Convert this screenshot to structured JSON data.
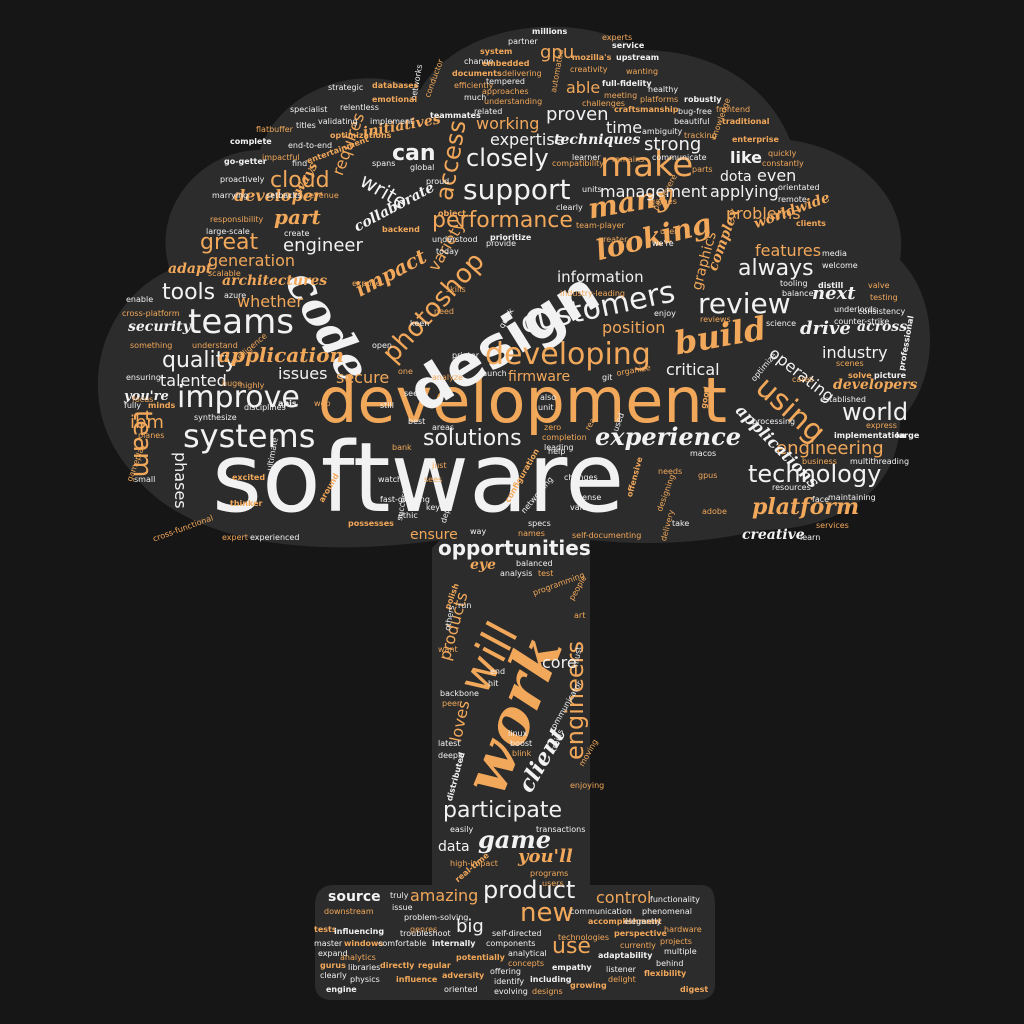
{
  "colors": {
    "background": "#161616",
    "shape": "#2c2c2c",
    "accent": "#f2a85a",
    "light": "#f2f2f2"
  },
  "words": {
    "software": "software",
    "development": "development",
    "design": "design",
    "code": "code",
    "work": "work",
    "will": "will",
    "customers": "customers",
    "developing": "developing",
    "build": "build",
    "teams": "teams",
    "systems": "systems",
    "improve": "improve",
    "experience": "experience",
    "solutions": "solutions",
    "support": "support",
    "make": "make",
    "looking": "looking",
    "many": "many",
    "review": "review",
    "using": "using",
    "world": "world",
    "technology": "technology",
    "platform": "platform",
    "photoshop": "photoshop",
    "performance": "performance",
    "cloud": "cloud",
    "team": "team",
    "great": "great",
    "engineer": "engineer",
    "tools": "tools",
    "quality": "quality",
    "application": "application",
    "opportunities": "opportunities",
    "engineers": "engineers",
    "client": "client",
    "participate": "participate",
    "game": "game",
    "product": "product",
    "new": "new",
    "amazing": "amazing",
    "use": "use",
    "source": "source",
    "control": "control",
    "big": "big",
    "data": "data",
    "you_ll": "you'll",
    "closely": "closely",
    "access": "access",
    "can": "can",
    "write": "write",
    "impact": "impact",
    "always": "always",
    "next": "next",
    "drive": "drive",
    "engineering": "engineering",
    "industry": "industry",
    "applications": "applications",
    "secure": "secure",
    "firmware": "firmware",
    "critical": "critical",
    "issues": "issues",
    "ensure": "ensure",
    "products": "products",
    "loves": "loves",
    "core": "core",
    "creative": "creative",
    "features": "features",
    "problems": "problems",
    "applying": "applying",
    "dota": "dota",
    "even": "even",
    "like": "like",
    "strong": "strong",
    "expertise": "expertise",
    "working": "working",
    "proven": "proven",
    "time": "time",
    "management": "management",
    "techniques": "techniques",
    "information": "information",
    "position": "position",
    "variety": "variety",
    "generation": "generation",
    "whether": "whether",
    "architectures": "architectures",
    "part": "part",
    "developer": "developer",
    "requires": "requires",
    "collaborate": "collaborate",
    "initiatives": "initiatives",
    "able": "able",
    "gpu": "gpu",
    "graphics": "graphics",
    "complex": "complex",
    "worldwide": "worldwide",
    "operating": "operating",
    "developers": "developers",
    "across": "across",
    "talented": "talented",
    "security": "security",
    "adapt": "adapt",
    "phases": "phases",
    "ibm": "ibm",
    "you_re": "you're",
    "eye": "eye",
    "ways": "ways",
    "entertainment": "entertainment",
    "optimizations": "optimizations",
    "databases": "databases",
    "emotional": "emotional",
    "strategic": "strategic",
    "relentless": "relentless",
    "specialist": "specialist",
    "validating": "validating",
    "titles": "titles",
    "implement": "implement",
    "flatbuffer": "flatbuffer",
    "end_to_end": "end-to-end",
    "go_getter": "go-getter",
    "proactively": "proactively",
    "marrying": "marrying",
    "setbacks": "setbacks",
    "revenue": "revenue",
    "responsibility": "responsibility",
    "large_scale": "large-scale",
    "create": "create",
    "enable": "enable",
    "cross_platform": "cross-platform",
    "azure": "azure",
    "scalable": "scalable",
    "something": "something",
    "understand": "understand",
    "ensuring": "ensuring",
    "highly": "highly",
    "intelligence": "intelligence",
    "fully": "fully",
    "minds": "minds",
    "synthesize": "synthesize",
    "disciplines": "disciplines",
    "small": "small",
    "excited": "excited",
    "expert": "expert",
    "experienced": "experienced",
    "cross_functional": "cross-functional",
    "gameplay": "gameplay",
    "thinker": "thinker",
    "ultimate": "ultimate",
    "millions": "millions",
    "partner": "partner",
    "system": "system",
    "change": "change",
    "documents": "documents",
    "efficiently": "efficiently",
    "much": "much",
    "approaches": "approaches",
    "embedded": "embedded",
    "tempered": "tempered",
    "delivering": "delivering",
    "understanding": "understanding",
    "related": "related",
    "experts": "experts",
    "service": "service",
    "upstream": "upstream",
    "mozilla_s": "mozilla's",
    "creativity": "creativity",
    "wanting": "wanting",
    "full_fidelity": "full-fidelity",
    "healthy": "healthy",
    "meeting": "meeting",
    "platforms": "platforms",
    "robustly": "robustly",
    "challenges": "challenges",
    "craftsmanship": "craftsmanship",
    "bug_free": "bug-free",
    "beautiful": "beautiful",
    "frontend": "frontend",
    "traditional": "traditional",
    "ambiguity": "ambiguity",
    "tracking": "tracking",
    "enterprise": "enterprise",
    "quickly": "quickly",
    "constantly": "constantly",
    "orientated": "orientated",
    "remote": "remote",
    "clients": "clients",
    "communicate": "communicate",
    "remains": "remains",
    "learner": "learner",
    "units": "units",
    "parts": "parts",
    "knowledge": "knowledge",
    "media": "media",
    "welcome": "welcome",
    "valve": "valve",
    "testing": "testing",
    "distill": "distill",
    "tooling": "tooling",
    "balance": "balance",
    "underlords": "underlords",
    "consistency": "consistency",
    "counter_strike": "counter-strike",
    "science": "science",
    "solve": "solve",
    "picture": "picture",
    "professional": "professional",
    "scenes": "scenes",
    "cares": "cares",
    "established": "established",
    "express": "express",
    "implementation": "implementation",
    "large": "large",
    "processing": "processing",
    "business": "business",
    "multithreading": "multithreading",
    "resources": "resources",
    "face": "face",
    "maintaining": "maintaining",
    "services": "services",
    "learn": "learn",
    "take": "take",
    "adobe": "adobe",
    "gpus": "gpus",
    "needs": "needs",
    "offensive": "offensive",
    "designing": "designing",
    "delivery": "delivery",
    "help": "help",
    "changes": "changes",
    "sense": "sense",
    "value": "value",
    "self_documenting": "self-documenting",
    "specs": "specs",
    "names": "names",
    "networking": "networking",
    "balanced": "balanced",
    "analysis": "analysis",
    "test": "test",
    "programming": "programming",
    "people": "people",
    "art": "art",
    "run": "run",
    "polish": "polish",
    "others": "others",
    "want": "want",
    "end": "end",
    "hit": "hit",
    "communicator": "communicator",
    "trains": "trains",
    "must": "must",
    "backbone": "backbone",
    "peer": "peer",
    "linux": "linux",
    "boost": "boost",
    "blink": "blink",
    "latest": "latest",
    "deeply": "deeply",
    "distributed": "distributed",
    "moving": "moving",
    "enjoying": "enjoying",
    "easily": "easily",
    "transactions": "transactions",
    "high_impact": "high-impact",
    "real_time": "real-time",
    "programs": "programs",
    "users": "users",
    "truly": "truly",
    "issue": "issue",
    "downstream": "downstream",
    "problem_solving": "problem-solving",
    "communication": "communication",
    "phenomenal": "phenomenal",
    "functionality": "functionality",
    "accomplishment": "accomplishment",
    "elegantly": "elegantly",
    "genres": "genres",
    "troubleshoot": "troubleshoot",
    "tests": "tests",
    "influencing": "influencing",
    "master": "master",
    "windows": "windows",
    "comfortable": "comfortable",
    "internally": "internally",
    "potentially": "potentially",
    "components": "components",
    "self_directed": "self-directed",
    "analytical": "analytical",
    "technologies": "technologies",
    "perspective": "perspective",
    "currently": "currently",
    "projects": "projects",
    "hardware": "hardware",
    "multiple": "multiple",
    "behind": "behind",
    "expand": "expand",
    "clearly": "clearly",
    "gurus": "gurus",
    "analytics": "analytics",
    "libraries": "libraries",
    "directly": "directly",
    "regular": "regular",
    "concepts": "concepts",
    "empathy": "empathy",
    "adaptability": "adaptability",
    "listener": "listener",
    "delight": "delight",
    "flexibility": "flexibility",
    "digest": "digest",
    "engine": "engine",
    "physics": "physics",
    "influence": "influence",
    "adversity": "adversity",
    "oriented": "oriented",
    "offering": "offering",
    "identify": "identify",
    "evolving": "evolving",
    "including": "including",
    "growing": "growing",
    "designs": "designs",
    "launch": "launch",
    "analyze": "analyze",
    "printer": "printer",
    "quick": "quick",
    "keen": "keen",
    "need": "need",
    "open": "open",
    "expose": "expose",
    "skills": "skills",
    "today": "today",
    "understood": "understood",
    "prioritize": "prioritize",
    "provide": "provide",
    "we_re": "we're",
    "user": "user",
    "greater": "greater",
    "team_player": "team-player",
    "clearly2": "clearly",
    "games": "games",
    "persevere": "persevere",
    "industry_leading": "industry-leading",
    "enjoy": "enjoy",
    "reviews": "reviews",
    "optimize": "optimize",
    "organize": "organize",
    "git": "git",
    "macos": "macos",
    "leading": "leading",
    "completion": "completion",
    "zero": "zero",
    "unit": "unit",
    "also": "also",
    "read": "read",
    "used": "used",
    "good": "good",
    "see": "see",
    "still": "still",
    "best": "best",
    "areas": "areas",
    "bank": "bank",
    "watch": "watch",
    "sees": "sees",
    "just": "just",
    "fast_growing": "fast-growing",
    "key": "key",
    "dependencies": "dependencies",
    "configuration": "configuration",
    "way": "way",
    "ethic": "ethic",
    "success": "success",
    "possesses": "possesses",
    "around": "around",
    "apis": "apis",
    "web": "web",
    "spans": "spans",
    "find": "find",
    "global": "global",
    "proud": "proud",
    "object": "object",
    "backend": "backend",
    "conductor": "conductor",
    "teammates": "teammates",
    "networks": "networks",
    "automated": "automated",
    "compatibility": "compatibility",
    "complete": "complete",
    "impactful": "impactful",
    "focus": "focus",
    "planes": "planes",
    "huge": "huge",
    "one": "one",
    "progress": "progress",
    "stores": "stores",
    "sized": "sized",
    "programs2": "programs",
    "well": "well",
    "oems": "oems",
    "simd": "simd",
    "pcie": "pcie",
    "scripts": "scripts",
    "sqlite": "sqlite",
    "architecture": "architecture",
    "lower": "lower"
  }
}
